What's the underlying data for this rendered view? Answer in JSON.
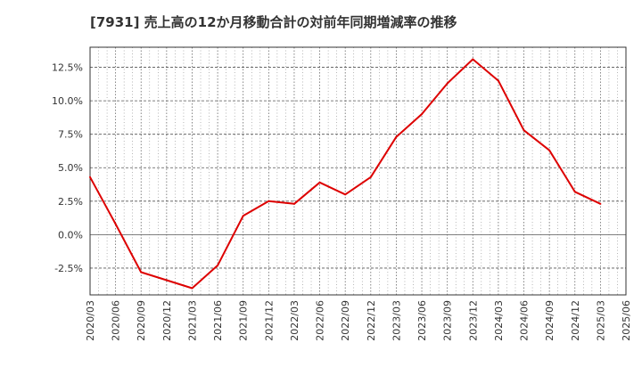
{
  "chart_data": {
    "type": "line",
    "title": "[7931]  売上高の12か月移動合計の対前年同期増減率の推移",
    "xlabel": "",
    "ylabel": "",
    "x_tick_labels": [
      "2020/03",
      "2020/06",
      "2020/09",
      "2020/12",
      "2021/03",
      "2021/06",
      "2021/09",
      "2021/12",
      "2022/03",
      "2022/06",
      "2022/09",
      "2022/12",
      "2023/03",
      "2023/06",
      "2023/09",
      "2023/12",
      "2024/03",
      "2024/06",
      "2024/09",
      "2024/12",
      "2025/03",
      "2025/06"
    ],
    "y_ticks": [
      -2.5,
      0.0,
      2.5,
      5.0,
      7.5,
      10.0,
      12.5
    ],
    "y_tick_labels": [
      "-2.5%",
      "0.0%",
      "2.5%",
      "5.0%",
      "7.5%",
      "10.0%",
      "12.5%"
    ],
    "ylim": [
      -4.5,
      14.0
    ],
    "grid": true,
    "series": [
      {
        "name": "増減率",
        "color": "#dd0000",
        "x": [
          "2020/03",
          "2020/06",
          "2020/09",
          "2020/12",
          "2021/03",
          "2021/06",
          "2021/09",
          "2021/12",
          "2022/03",
          "2022/06",
          "2022/09",
          "2022/12",
          "2023/03",
          "2023/06",
          "2023/09",
          "2023/12",
          "2024/03",
          "2024/06",
          "2024/09",
          "2024/12",
          "2025/03"
        ],
        "values": [
          4.3,
          0.8,
          -2.8,
          -3.4,
          -4.0,
          -2.3,
          1.4,
          2.5,
          2.3,
          3.9,
          3.0,
          4.3,
          7.3,
          9.0,
          11.3,
          13.1,
          11.5,
          7.8,
          6.3,
          3.2,
          2.3
        ]
      }
    ]
  }
}
